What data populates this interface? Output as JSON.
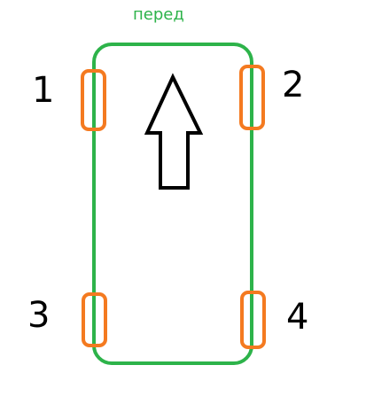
{
  "diagram": {
    "front_label": "перед",
    "wheels": [
      {
        "number": "1"
      },
      {
        "number": "2"
      },
      {
        "number": "3"
      },
      {
        "number": "4"
      }
    ],
    "colors": {
      "body": "#2db34a",
      "wheel": "#f47a20",
      "arrow": "#000000",
      "label": "#2db34a"
    },
    "arrow_icon": "up-arrow-outline"
  }
}
